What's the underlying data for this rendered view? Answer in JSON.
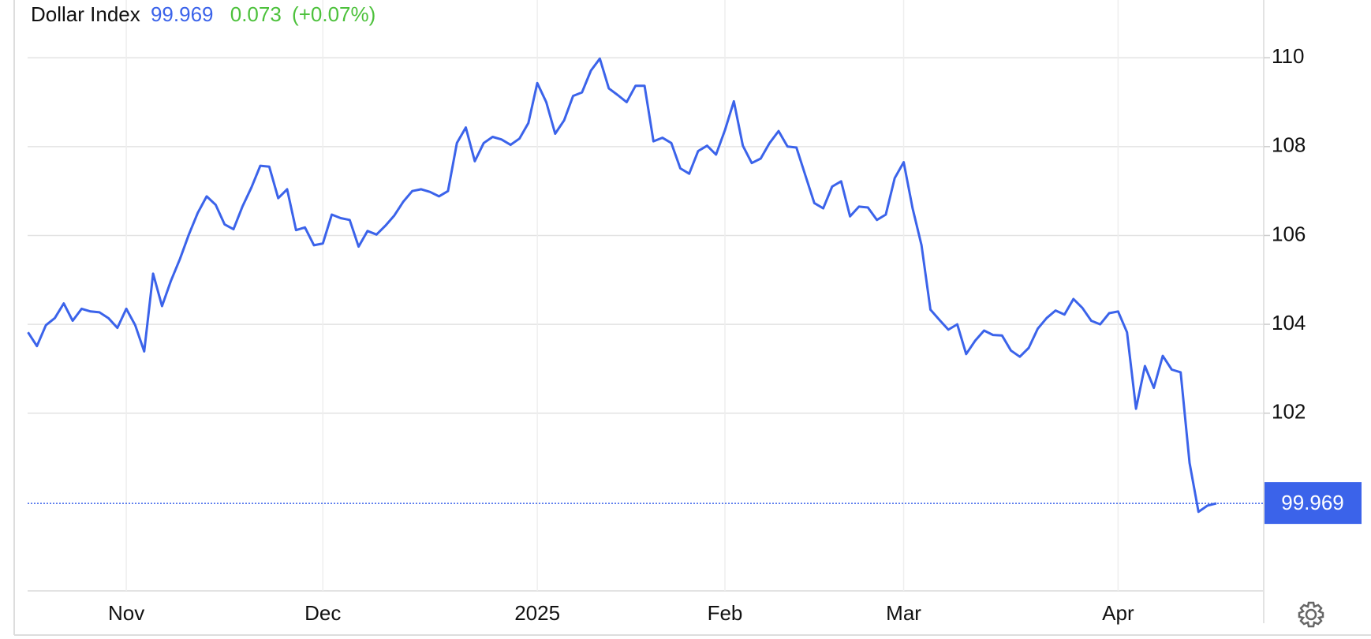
{
  "header": {
    "name": "Dollar Index",
    "last": "99.969",
    "change": "0.073",
    "change_pct": "(+0.07%)"
  },
  "chart_data": {
    "type": "line",
    "categories": [
      null,
      null,
      null,
      null,
      null,
      null,
      null,
      null,
      null,
      null,
      null,
      "Nov",
      null,
      null,
      null,
      null,
      null,
      null,
      null,
      null,
      null,
      null,
      null,
      null,
      null,
      null,
      null,
      null,
      null,
      null,
      null,
      null,
      null,
      "Dec",
      null,
      null,
      null,
      null,
      null,
      null,
      null,
      null,
      null,
      null,
      null,
      null,
      null,
      null,
      null,
      null,
      null,
      null,
      null,
      null,
      null,
      null,
      null,
      "2025",
      null,
      null,
      null,
      null,
      null,
      null,
      null,
      null,
      null,
      null,
      null,
      null,
      null,
      null,
      null,
      null,
      null,
      null,
      null,
      null,
      "Feb",
      null,
      null,
      null,
      null,
      null,
      null,
      null,
      null,
      null,
      null,
      null,
      null,
      null,
      null,
      null,
      null,
      null,
      null,
      null,
      "Mar",
      null,
      null,
      null,
      null,
      null,
      null,
      null,
      null,
      null,
      null,
      null,
      null,
      null,
      null,
      null,
      null,
      null,
      null,
      null,
      null,
      null,
      null,
      null,
      "Apr",
      null,
      null,
      null,
      null,
      null,
      null,
      null,
      null,
      null,
      null,
      null
    ],
    "series": [
      {
        "name": "Dollar Index",
        "color": "#3b63ea",
        "values": [
          103.82,
          103.51,
          103.98,
          104.14,
          104.47,
          104.08,
          104.35,
          104.29,
          104.27,
          104.14,
          103.92,
          104.35,
          103.98,
          103.39,
          105.14,
          104.41,
          104.98,
          105.47,
          106.02,
          106.51,
          106.88,
          106.69,
          106.25,
          106.14,
          106.65,
          107.08,
          107.57,
          107.55,
          106.84,
          107.04,
          106.12,
          106.18,
          105.78,
          105.82,
          106.47,
          106.39,
          106.35,
          105.75,
          106.1,
          106.02,
          106.22,
          106.45,
          106.76,
          107.0,
          107.04,
          106.98,
          106.88,
          107.0,
          108.08,
          108.43,
          107.67,
          108.08,
          108.22,
          108.16,
          108.04,
          108.18,
          108.53,
          109.43,
          109.0,
          108.29,
          108.59,
          109.14,
          109.22,
          109.71,
          109.98,
          109.31,
          109.16,
          109.0,
          109.37,
          109.37,
          108.12,
          108.2,
          108.08,
          107.51,
          107.39,
          107.9,
          108.02,
          107.82,
          108.37,
          109.02,
          108.02,
          107.63,
          107.73,
          108.08,
          108.35,
          108.0,
          107.98,
          107.35,
          106.73,
          106.61,
          107.1,
          107.22,
          106.43,
          106.65,
          106.63,
          106.35,
          106.47,
          107.29,
          107.65,
          106.61,
          105.78,
          104.33,
          104.1,
          103.88,
          104.0,
          103.33,
          103.63,
          103.86,
          103.76,
          103.75,
          103.41,
          103.27,
          103.47,
          103.9,
          104.14,
          104.31,
          104.22,
          104.57,
          104.37,
          104.08,
          104.0,
          104.25,
          104.29,
          103.82,
          102.1,
          103.06,
          102.57,
          103.29,
          102.98,
          102.92,
          100.88,
          99.78,
          99.92,
          99.969
        ]
      }
    ],
    "ylim": [
      98,
      111.3
    ],
    "yticks": [
      102,
      104,
      106,
      108,
      110
    ],
    "grid": true
  }
}
